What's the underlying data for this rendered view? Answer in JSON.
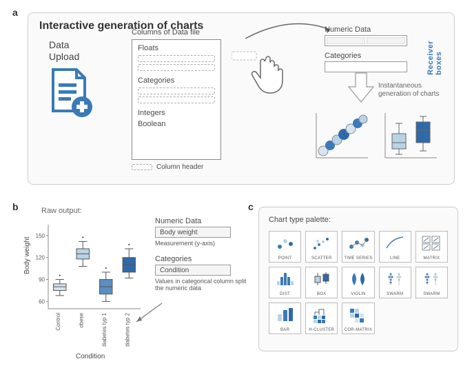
{
  "labels": {
    "a": "a",
    "b": "b",
    "c": "c"
  },
  "panelA": {
    "title": "Interactive generation of charts",
    "upload_label": "Data\nUpload",
    "columns_title": "Columns of Data file",
    "sections": {
      "floats": "Floats",
      "categories": "Categories",
      "integers": "Integers",
      "boolean": "Boolean"
    },
    "legend": "Column  header",
    "receiver": {
      "numeric": "Numeric Data",
      "categories": "Categories",
      "side": "Receiver boxes"
    },
    "instant_text": "Instantaneous generation of charts"
  },
  "panelB": {
    "raw_output": "Raw output:",
    "ylabel": "Body weight",
    "xlabel": "Condition",
    "numeric_label": "Numeric Data",
    "numeric_value": "Body weight",
    "numeric_caption": "Measurement (y-axis)",
    "cat_label": "Categories",
    "cat_value": "Condition",
    "cat_caption": "Values in categorical column split the numeric data",
    "boxplot": {
      "type": "boxplot",
      "categories": [
        "Control",
        "obese",
        "diabetes typ 1",
        "diabetes typ 2"
      ],
      "yticks": [
        60,
        90,
        120,
        150
      ],
      "ylim": [
        50,
        165
      ],
      "boxes": [
        {
          "q1": 75,
          "med": 80,
          "q3": 84,
          "lo": 68,
          "hi": 90,
          "color": "#d6e4ef"
        },
        {
          "q1": 118,
          "med": 125,
          "q3": 132,
          "lo": 108,
          "hi": 142,
          "color": "#b9d3e6"
        },
        {
          "q1": 70,
          "med": 80,
          "q3": 90,
          "lo": 60,
          "hi": 100,
          "color": "#5a8fc2"
        },
        {
          "q1": 100,
          "med": 110,
          "q3": 120,
          "lo": 92,
          "hi": 132,
          "color": "#2f6aa8"
        }
      ],
      "text_color": "#555555",
      "axis_color": "#888888"
    }
  },
  "panelC": {
    "title": "Chart type palette:",
    "items": [
      {
        "name": "Point"
      },
      {
        "name": "Scatter"
      },
      {
        "name": "Time Series"
      },
      {
        "name": "Line"
      },
      {
        "name": "Matrix"
      },
      {
        "name": "Dist"
      },
      {
        "name": "Box"
      },
      {
        "name": "Violin"
      },
      {
        "name": "Swarm"
      },
      {
        "name": "Swarm"
      },
      {
        "name": "Bar"
      },
      {
        "name": "H-Cluster"
      },
      {
        "name": "Cor-Matrix"
      }
    ]
  },
  "colors": {
    "primary": "#3a7ab8",
    "light1": "#b9d3e6",
    "light2": "#d6e4ef",
    "dark": "#2f6aa8",
    "border": "#888888",
    "panel_bg": "#fafafa"
  }
}
